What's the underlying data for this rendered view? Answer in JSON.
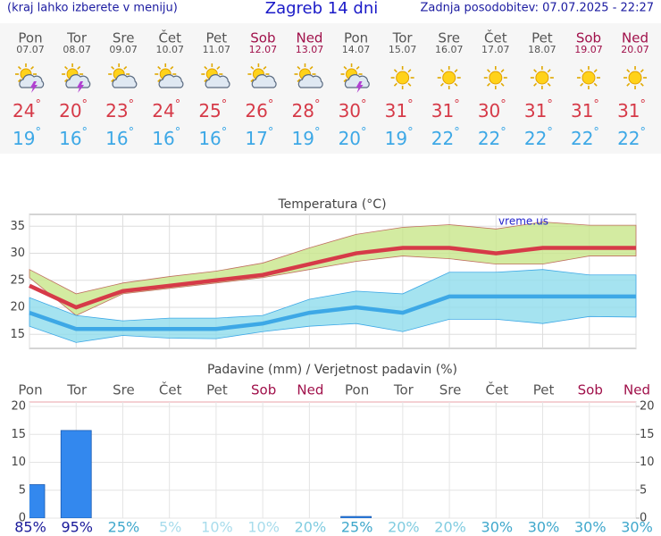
{
  "header": {
    "hint": "(kraj lahko izberete v meniju)",
    "title": "Zagreb 14 dni",
    "updated": "Zadnja posodobitev: 07.07.2025 - 22:27"
  },
  "degree": "°",
  "days": [
    {
      "name": "Pon",
      "date": "07.07",
      "color": "#555555",
      "icon": "storm",
      "max": 24,
      "min": 19
    },
    {
      "name": "Tor",
      "date": "08.07",
      "color": "#555555",
      "icon": "storm",
      "max": 20,
      "min": 16
    },
    {
      "name": "Sre",
      "date": "09.07",
      "color": "#555555",
      "icon": "partly",
      "max": 23,
      "min": 16
    },
    {
      "name": "Čet",
      "date": "10.07",
      "color": "#555555",
      "icon": "partly",
      "max": 24,
      "min": 16
    },
    {
      "name": "Pet",
      "date": "11.07",
      "color": "#555555",
      "icon": "partly",
      "max": 25,
      "min": 16
    },
    {
      "name": "Sob",
      "date": "12.07",
      "color": "#a0104a",
      "icon": "partly",
      "max": 26,
      "min": 17
    },
    {
      "name": "Ned",
      "date": "13.07",
      "color": "#a0104a",
      "icon": "partly",
      "max": 28,
      "min": 19
    },
    {
      "name": "Pon",
      "date": "14.07",
      "color": "#555555",
      "icon": "storm",
      "max": 30,
      "min": 20
    },
    {
      "name": "Tor",
      "date": "15.07",
      "color": "#555555",
      "icon": "sun",
      "max": 31,
      "min": 19
    },
    {
      "name": "Sre",
      "date": "16.07",
      "color": "#555555",
      "icon": "sun",
      "max": 31,
      "min": 22
    },
    {
      "name": "Čet",
      "date": "17.07",
      "color": "#555555",
      "icon": "sun",
      "max": 30,
      "min": 22
    },
    {
      "name": "Pet",
      "date": "18.07",
      "color": "#555555",
      "icon": "sun",
      "max": 31,
      "min": 22
    },
    {
      "name": "Sob",
      "date": "19.07",
      "color": "#a0104a",
      "icon": "sun",
      "max": 31,
      "min": 22
    },
    {
      "name": "Ned",
      "date": "20.07",
      "color": "#a0104a",
      "icon": "sun",
      "max": 31,
      "min": 22
    }
  ],
  "chart_data": [
    {
      "type": "line",
      "title": "Temperatura (°C)",
      "watermark": "vreme.us",
      "ylim": [
        12.4,
        37.2
      ],
      "yticks": [
        15,
        20,
        25,
        30,
        35
      ],
      "grid": true,
      "bands": [
        {
          "color": "#c8e68a",
          "upper": [
            27,
            22.5,
            24.5,
            25.7,
            26.7,
            28.2,
            31,
            33.5,
            34.8,
            35.3,
            34.5,
            35.8,
            35.2,
            35.2
          ],
          "lower": [
            25.5,
            18.5,
            22.5,
            23.5,
            24.5,
            25.5,
            27,
            28.5,
            29.5,
            29,
            28,
            28,
            29.5,
            29.5
          ]
        },
        {
          "color": "#8fdcec",
          "upper": [
            21.8,
            18.5,
            17.5,
            18,
            18,
            18.5,
            21.5,
            23,
            22.5,
            26.5,
            26.5,
            27,
            26,
            26
          ],
          "lower": [
            16.5,
            13.5,
            14.8,
            14.3,
            14.2,
            15.5,
            16.5,
            17,
            15.5,
            17.8,
            17.8,
            17,
            18.3,
            18.2
          ]
        }
      ],
      "series": [
        {
          "color": "#d63a48",
          "values": [
            24,
            20,
            23,
            24,
            25,
            26,
            28,
            30,
            31,
            31,
            30,
            31,
            31,
            31
          ]
        },
        {
          "color": "#3da8e6",
          "values": [
            19,
            16,
            16,
            16,
            16,
            17,
            19,
            20,
            19,
            22,
            22,
            22,
            22,
            22
          ]
        }
      ]
    },
    {
      "type": "bar",
      "title": "Padavine (mm) / Verjetnost padavin (%)",
      "categories": [
        "Pon",
        "Tor",
        "Sre",
        "Čet",
        "Pet",
        "Sob",
        "Ned",
        "Pon",
        "Tor",
        "Sre",
        "Čet",
        "Pet",
        "Sob",
        "Ned"
      ],
      "category_colors": [
        "#555555",
        "#555555",
        "#555555",
        "#555555",
        "#555555",
        "#a0104a",
        "#a0104a",
        "#555555",
        "#555555",
        "#555555",
        "#555555",
        "#555555",
        "#a0104a",
        "#a0104a"
      ],
      "values": [
        6,
        15.7,
        0,
        0,
        0,
        0,
        0,
        0.3,
        0,
        0,
        0,
        0,
        0,
        0
      ],
      "color": "#3388ee",
      "probability": {
        "values": [
          85,
          95,
          25,
          5,
          10,
          10,
          20,
          25,
          20,
          20,
          30,
          30,
          30,
          30
        ],
        "value_labels": [
          "85%",
          "95%",
          "25%",
          "5%",
          "10%",
          "10%",
          "20%",
          "25%",
          "20%",
          "20%",
          "30%",
          "30%",
          "30%",
          "30%"
        ]
      },
      "ylim": [
        0,
        20.8
      ],
      "yticks": [
        0,
        5,
        10,
        15,
        20
      ],
      "y2lim": [
        0,
        20.8
      ],
      "y2ticks": [
        0,
        5,
        10,
        15,
        20
      ],
      "grid": true
    }
  ]
}
